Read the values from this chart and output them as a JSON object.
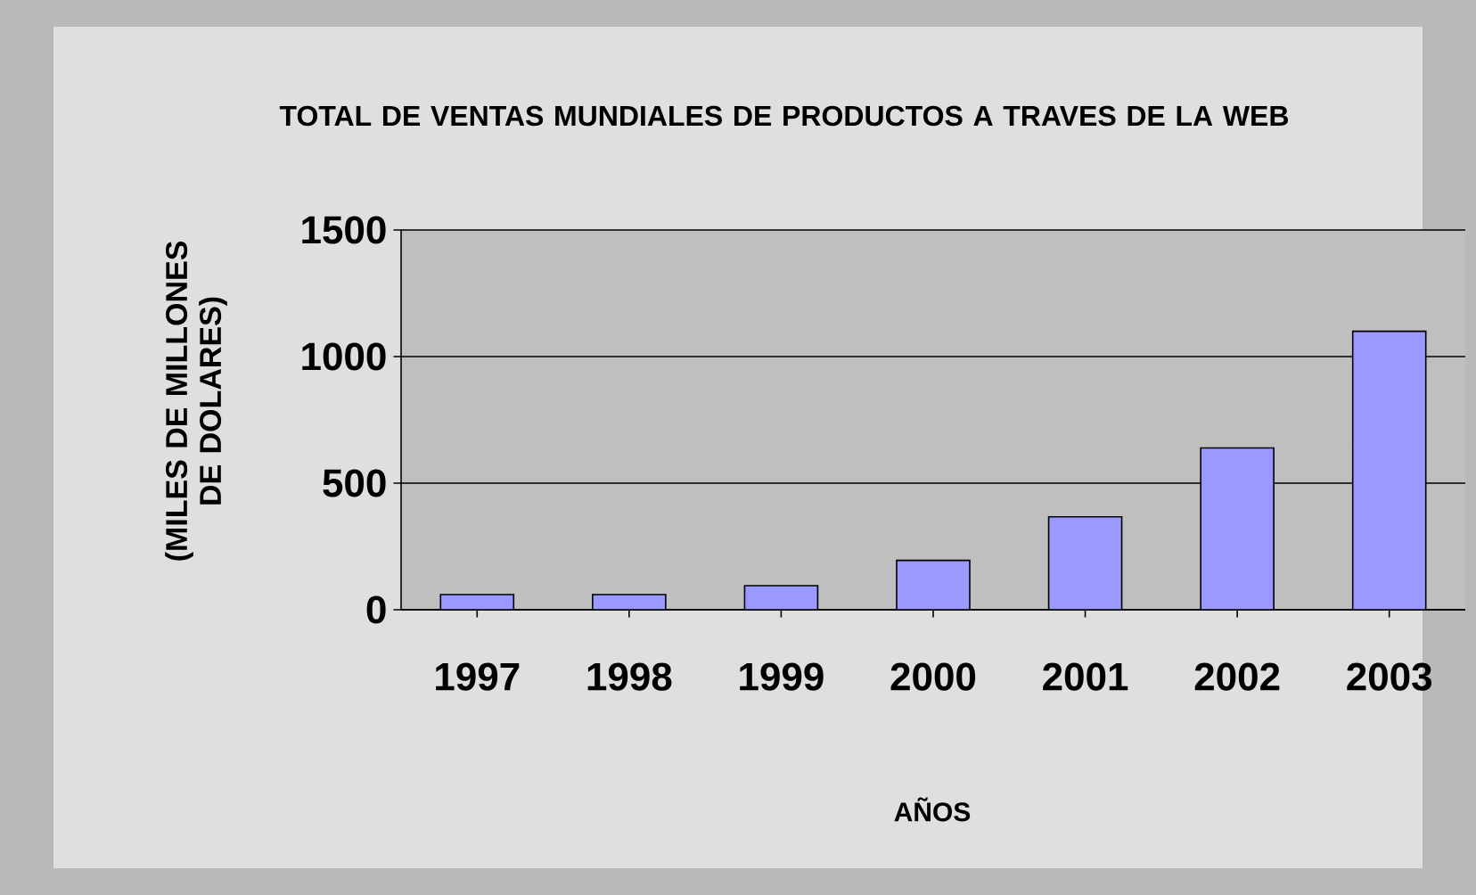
{
  "chart_data": {
    "type": "bar",
    "title": "TOTAL DE VENTAS MUNDIALES DE PRODUCTOS A TRAVES DE LA WEB",
    "xlabel": "AÑOS",
    "ylabel": "(MILES DE MILLONES DE DOLARES)",
    "categories": [
      "1997",
      "1998",
      "1999",
      "2000",
      "2001",
      "2002",
      "2003"
    ],
    "values": [
      60,
      60,
      95,
      195,
      367,
      639,
      1100
    ],
    "color": "#9999ff",
    "ylim": [
      0,
      1500
    ],
    "yticks": [
      0,
      500,
      1000,
      1500
    ],
    "grid": "y"
  }
}
